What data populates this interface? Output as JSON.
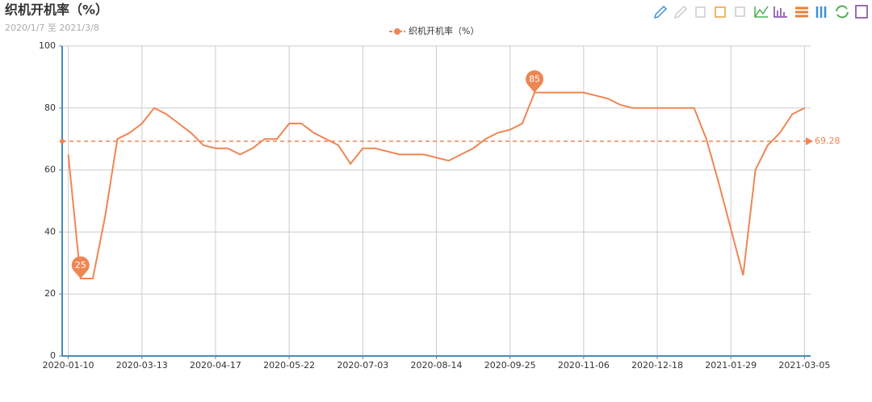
{
  "chart_data": {
    "type": "line",
    "title": "织机开机率（%）",
    "subtitle": "2020/1/7 至 2021/3/8",
    "categories": [
      "2020-01-10",
      null,
      null,
      null,
      null,
      null,
      "2020-03-13",
      null,
      null,
      null,
      null,
      null,
      "2020-04-17",
      null,
      null,
      null,
      null,
      null,
      "2020-05-22",
      null,
      null,
      null,
      null,
      null,
      "2020-07-03",
      null,
      null,
      null,
      null,
      null,
      "2020-08-14",
      null,
      null,
      null,
      null,
      null,
      "2020-09-25",
      null,
      null,
      null,
      null,
      null,
      "2020-11-06",
      null,
      null,
      null,
      null,
      null,
      "2020-12-18",
      null,
      null,
      null,
      null,
      null,
      "2021-01-29",
      null,
      null,
      null,
      null,
      null,
      "2021-03-05"
    ],
    "series": [
      {
        "name": "织机开机率（%）",
        "color": "#ee8654",
        "values": [
          65,
          25,
          25,
          45,
          70,
          72,
          75,
          80,
          78,
          75,
          72,
          68,
          67,
          67,
          65,
          67,
          70,
          70,
          75,
          75,
          72,
          70,
          68,
          62,
          67,
          67,
          66,
          65,
          65,
          65,
          64,
          63,
          65,
          67,
          70,
          72,
          73,
          75,
          85,
          85,
          85,
          85,
          85,
          84,
          83,
          81,
          80,
          80,
          80,
          80,
          80,
          80,
          70,
          56,
          41,
          26,
          60,
          68,
          72,
          78,
          80
        ]
      }
    ],
    "ylim": [
      0,
      100
    ],
    "yticks": [
      0,
      20,
      40,
      60,
      80,
      100
    ],
    "grid": true,
    "mark_line": 69.28,
    "mark_points": [
      25,
      85
    ]
  }
}
